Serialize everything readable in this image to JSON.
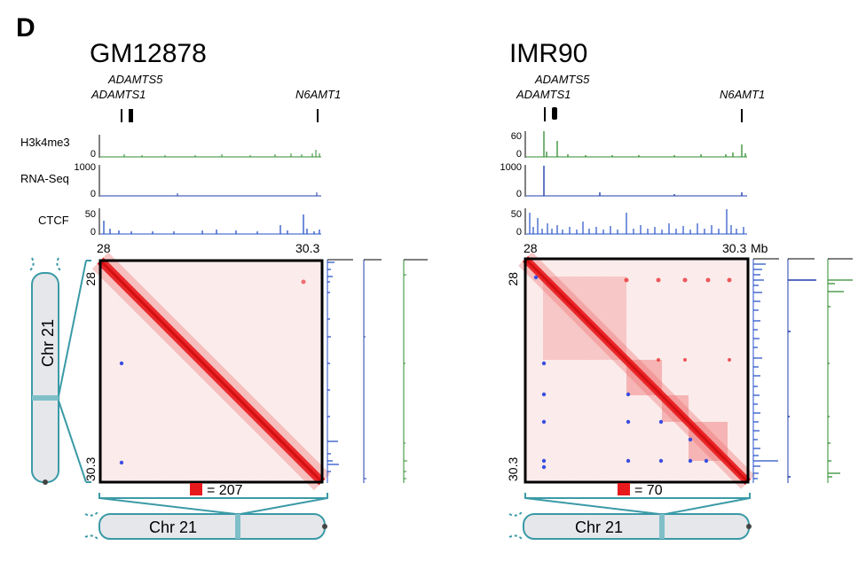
{
  "panel_letter": "D",
  "track_labels": {
    "h3k4me3": "H3k4me3",
    "rnaseq": "RNA-Seq",
    "ctcf": "CTCF"
  },
  "panels": [
    {
      "cell_line": "GM12878",
      "genes": {
        "adamts5": "ADAMTS5",
        "adamts1": "ADAMTS1",
        "n6amt1": "N6AMT1"
      },
      "track_max": {
        "h3k4me3": "",
        "rnaseq": "1000",
        "ctcf": "50"
      },
      "track_zero": "0",
      "coord_start": "28",
      "coord_end": "30.3",
      "unit": "",
      "chromosome": "Chr 21",
      "color_scale": "= 207"
    },
    {
      "cell_line": "IMR90",
      "genes": {
        "adamts5": "ADAMTS5",
        "adamts1": "ADAMTS1",
        "n6amt1": "N6AMT1"
      },
      "track_max": {
        "h3k4me3": "60",
        "rnaseq": "1000",
        "ctcf": "50"
      },
      "track_zero": "0",
      "coord_start": "28",
      "coord_end": "30.3",
      "unit": "Mb",
      "chromosome": "Chr 21",
      "color_scale": "= 70"
    }
  ],
  "colors": {
    "contact": "#e8191c",
    "h3k4me3": "#2e8b2e",
    "rnaseq": "#1f3fae",
    "ctcf": "#2550c8",
    "chromosome_outline": "#3a9aa6",
    "chromosome_fill": "#e6e7ea",
    "loop_dot": "#3a4ee0"
  }
}
